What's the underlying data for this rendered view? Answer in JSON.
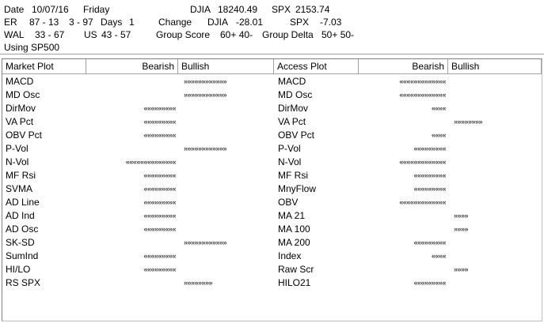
{
  "header": {
    "date_label": "Date",
    "date": "10/07/16",
    "weekday": "Friday",
    "djia_label": "DJIA",
    "djia": "18240.49",
    "spx_label": "SPX",
    "spx": "2153.74",
    "er_label": "ER",
    "er": "87 - 13",
    "er2": "3 - 97",
    "days_label": "Days",
    "days": "1",
    "change_label": "Change",
    "chg_djia_label": "DJIA",
    "chg_djia": "-28.01",
    "chg_spx_label": "SPX",
    "chg_spx": "-7.03",
    "wal_label": "WAL",
    "wal": "33 - 67",
    "us_label": "US",
    "us": "43 - 57",
    "group_score_label": "Group Score",
    "group_score": "60+ 40-",
    "group_delta_label": "Group Delta",
    "group_delta": "50+ 50-",
    "using": "Using SP500"
  },
  "columns": {
    "left_name": "Market Plot",
    "left_bear": "Bearish",
    "left_bull": "Bullish",
    "right_name": "Access Plot",
    "right_bear": "Bearish",
    "right_bull": "Bullish"
  },
  "market_rows": [
    {
      "label": "MACD",
      "bear": "",
      "bull": "»»»»»»»»»»»»"
    },
    {
      "label": "MD Osc",
      "bear": "",
      "bull": "»»»»»»»»»»»»"
    },
    {
      "label": "DirMov",
      "bear": "«««««««««",
      "bull": ""
    },
    {
      "label": "VA Pct",
      "bear": "«««««««««",
      "bull": ""
    },
    {
      "label": "OBV Pct",
      "bear": "«««««««««",
      "bull": ""
    },
    {
      "label": "P-Vol",
      "bear": "",
      "bull": "»»»»»»»»»»»»"
    },
    {
      "label": "N-Vol",
      "bear": "««««««««««««««",
      "bull": ""
    },
    {
      "label": "MF Rsi",
      "bear": "«««««««««",
      "bull": ""
    },
    {
      "label": "SVMA",
      "bear": "«««««««««",
      "bull": ""
    },
    {
      "label": "AD Line",
      "bear": "«««««««««",
      "bull": ""
    },
    {
      "label": "AD Ind",
      "bear": "«««««««««",
      "bull": ""
    },
    {
      "label": "AD Osc",
      "bear": "«««««««««",
      "bull": ""
    },
    {
      "label": "SK-SD",
      "bear": "",
      "bull": "»»»»»»»»»»»»"
    },
    {
      "label": "SumInd",
      "bear": "«««««««««",
      "bull": ""
    },
    {
      "label": "HI/LO",
      "bear": "«««««««««",
      "bull": ""
    },
    {
      "label": "RS SPX",
      "bear": "",
      "bull": "»»»»»»»»"
    }
  ],
  "access_rows": [
    {
      "label": "MACD",
      "bear": "«««««««««««««",
      "bull": ""
    },
    {
      "label": "MD Osc",
      "bear": "«««««««««««««",
      "bull": ""
    },
    {
      "label": "DirMov",
      "bear": "««««",
      "bull": ""
    },
    {
      "label": "VA Pct",
      "bear": "",
      "bull": "»»»»»»»»"
    },
    {
      "label": "OBV Pct",
      "bear": "««««",
      "bull": ""
    },
    {
      "label": "P-Vol",
      "bear": "«««««««««",
      "bull": ""
    },
    {
      "label": "N-Vol",
      "bear": "«««««««««««««",
      "bull": ""
    },
    {
      "label": "MF Rsi",
      "bear": "«««««««««",
      "bull": ""
    },
    {
      "label": "MnyFlow",
      "bear": "«««««««««",
      "bull": ""
    },
    {
      "label": "OBV",
      "bear": "«««««««««««««",
      "bull": ""
    },
    {
      "label": "MA 21",
      "bear": "",
      "bull": "»»»»"
    },
    {
      "label": "MA 100",
      "bear": "",
      "bull": "»»»»"
    },
    {
      "label": "MA 200",
      "bear": "«««««««««",
      "bull": ""
    },
    {
      "label": "Index",
      "bear": "««««",
      "bull": ""
    },
    {
      "label": "Raw Scr",
      "bear": "",
      "bull": "»»»»"
    },
    {
      "label": "HILO21",
      "bear": "«««««««««",
      "bull": ""
    }
  ]
}
